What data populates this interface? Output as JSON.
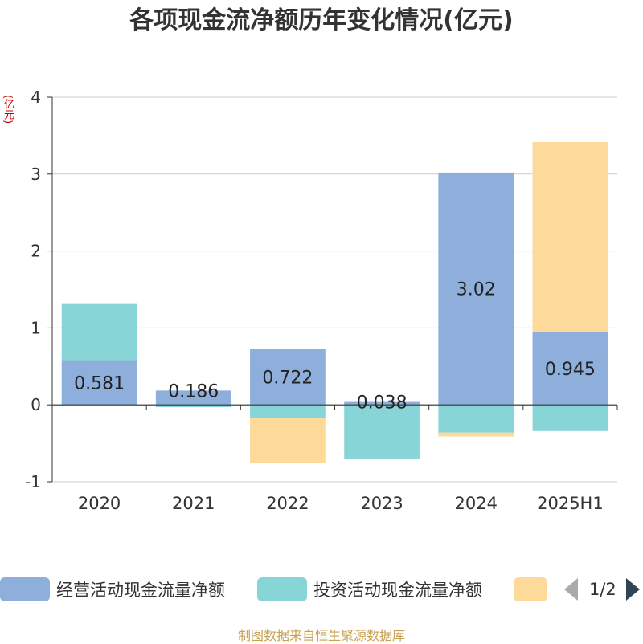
{
  "title": "各项现金流净额历年变化情况(亿元)",
  "y_unit": "(亿元)",
  "legend": {
    "items": [
      {
        "label": "经营活动现金流量净额",
        "color": "#8eaedb"
      },
      {
        "label": "投资活动现金流量净额",
        "color": "#88d5d8"
      },
      {
        "label": "",
        "color": "#fdd99a"
      }
    ],
    "pager_text": "1/2"
  },
  "source": "制图数据来自恒生聚源数据库",
  "chart_data": {
    "type": "bar",
    "stacked": true,
    "categories": [
      "2020",
      "2021",
      "2022",
      "2023",
      "2024",
      "2025H1"
    ],
    "ylim": [
      -1,
      4
    ],
    "yticks": [
      -1,
      0,
      1,
      2,
      3,
      4
    ],
    "grid": true,
    "legend_position": "bottom",
    "series": [
      {
        "name": "经营活动现金流量净额",
        "color": "#8eaedb",
        "values": [
          0.581,
          0.186,
          0.722,
          0.038,
          3.02,
          0.945
        ],
        "labels": [
          "0.581",
          "0.186",
          "0.722",
          "0.038",
          "3.02",
          "0.945"
        ]
      },
      {
        "name": "投资活动现金流量净额",
        "color": "#88d5d8",
        "values": [
          0.74,
          -0.03,
          -0.17,
          -0.7,
          -0.36,
          -0.34
        ]
      },
      {
        "name": "",
        "color": "#fdd99a",
        "values": [
          0,
          0,
          -0.58,
          0,
          -0.05,
          2.47
        ]
      }
    ]
  }
}
